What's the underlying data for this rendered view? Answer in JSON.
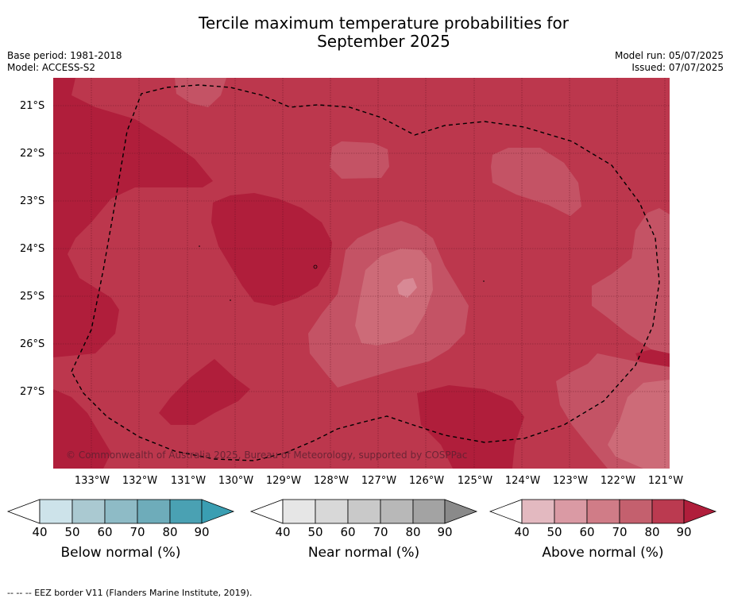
{
  "title_line1": "Tercile maximum temperature probabilities for",
  "title_line2": "September 2025",
  "base_period": "Base period: 1981-2018",
  "model": "Model: ACCESS-S2",
  "model_run": "Model run: 05/07/2025",
  "issued": "Issued: 07/07/2025",
  "lat_labels": [
    "21°S",
    "22°S",
    "23°S",
    "24°S",
    "25°S",
    "26°S",
    "27°S"
  ],
  "lon_labels": [
    "133°W",
    "132°W",
    "131°W",
    "130°W",
    "129°W",
    "128°W",
    "127°W",
    "126°W",
    "125°W",
    "124°W",
    "123°W",
    "122°W",
    "121°W"
  ],
  "copyright": "© Commonwealth of Australia 2025, Bureau of Meteorology, supported by COSPPac",
  "colorbars": [
    {
      "label": "Below normal (%)",
      "ticks": [
        "40",
        "50",
        "60",
        "70",
        "80",
        "90"
      ],
      "colors": [
        "#cde3ea",
        "#aac9d1",
        "#8ebbc6",
        "#6eacba",
        "#4aa1b3",
        "#3a9eb2"
      ]
    },
    {
      "label": "Near normal (%)",
      "ticks": [
        "40",
        "50",
        "60",
        "70",
        "80",
        "90"
      ],
      "colors": [
        "#e6e6e6",
        "#d8d8d8",
        "#c9c9c9",
        "#b8b8b8",
        "#a3a3a3",
        "#8a8a8a"
      ]
    },
    {
      "label": "Above normal (%)",
      "ticks": [
        "40",
        "50",
        "60",
        "70",
        "80",
        "90"
      ],
      "colors": [
        "#e3b9c0",
        "#da9aa4",
        "#d07c87",
        "#c4606e",
        "#bb3a50",
        "#b01e3b"
      ]
    }
  ],
  "footnote": "--  --  -- EEZ border V11 (Flanders Marine Institute, 2019).",
  "colors": {
    "map_base": "#bc374d",
    "map_dark": "#b01e3b",
    "map_light": "#c45365",
    "map_lighter": "#cd6b78",
    "map_lightest": "#d88995"
  }
}
